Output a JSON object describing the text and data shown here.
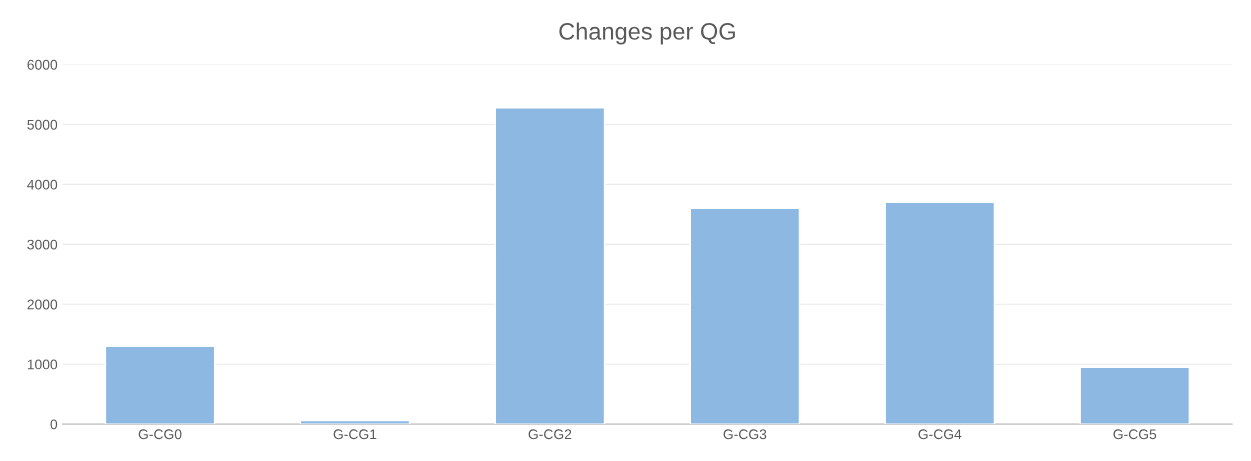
{
  "chart_data": {
    "type": "bar",
    "title": "Changes per QG",
    "categories": [
      "G-CG0",
      "G-CG1",
      "G-CG2",
      "G-CG3",
      "G-CG4",
      "G-CG5"
    ],
    "values": [
      1300,
      60,
      5280,
      3600,
      3700,
      950
    ],
    "color": "#8cb8e2",
    "ylim": [
      0,
      6000
    ],
    "yticks": [
      0,
      1000,
      2000,
      3000,
      4000,
      5000,
      6000
    ],
    "grid": "y"
  }
}
